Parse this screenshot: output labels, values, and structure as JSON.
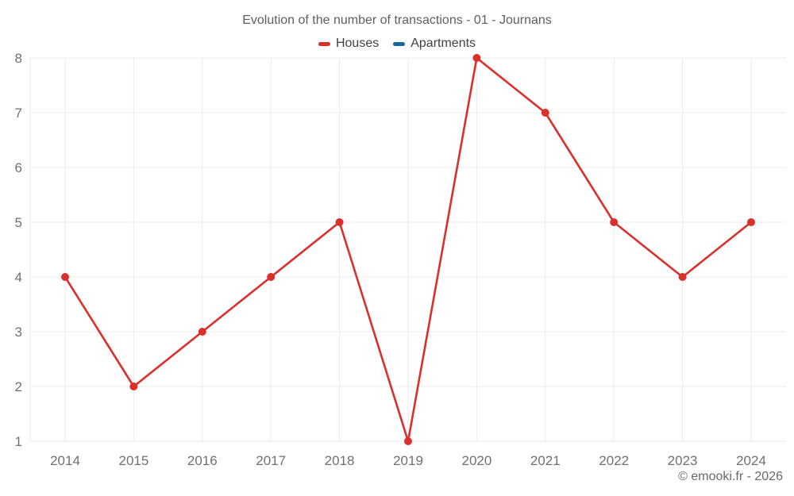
{
  "chart": {
    "title": "Evolution of the number of transactions - 01 - Journans",
    "footer": "© emooki.fr - 2026"
  },
  "chart_data": {
    "type": "line",
    "title": "Evolution of the number of transactions - 01 - Journans",
    "xlabel": "",
    "ylabel": "",
    "categories": [
      "2014",
      "2015",
      "2016",
      "2017",
      "2018",
      "2019",
      "2020",
      "2021",
      "2022",
      "2023",
      "2024"
    ],
    "series": [
      {
        "name": "Houses",
        "color": "#d9302c",
        "values": [
          4,
          2,
          3,
          4,
          5,
          1,
          8,
          7,
          5,
          4,
          5
        ]
      },
      {
        "name": "Apartments",
        "color": "#17699c",
        "values": []
      }
    ],
    "ylim": [
      1,
      8
    ],
    "yticks": [
      1,
      2,
      3,
      4,
      5,
      6,
      7,
      8
    ],
    "grid": true,
    "grid_color": "#ebebeb",
    "axis_text_color": "#6f7072",
    "legend_position": "top",
    "marker": "circle",
    "background": "#ffffff"
  }
}
